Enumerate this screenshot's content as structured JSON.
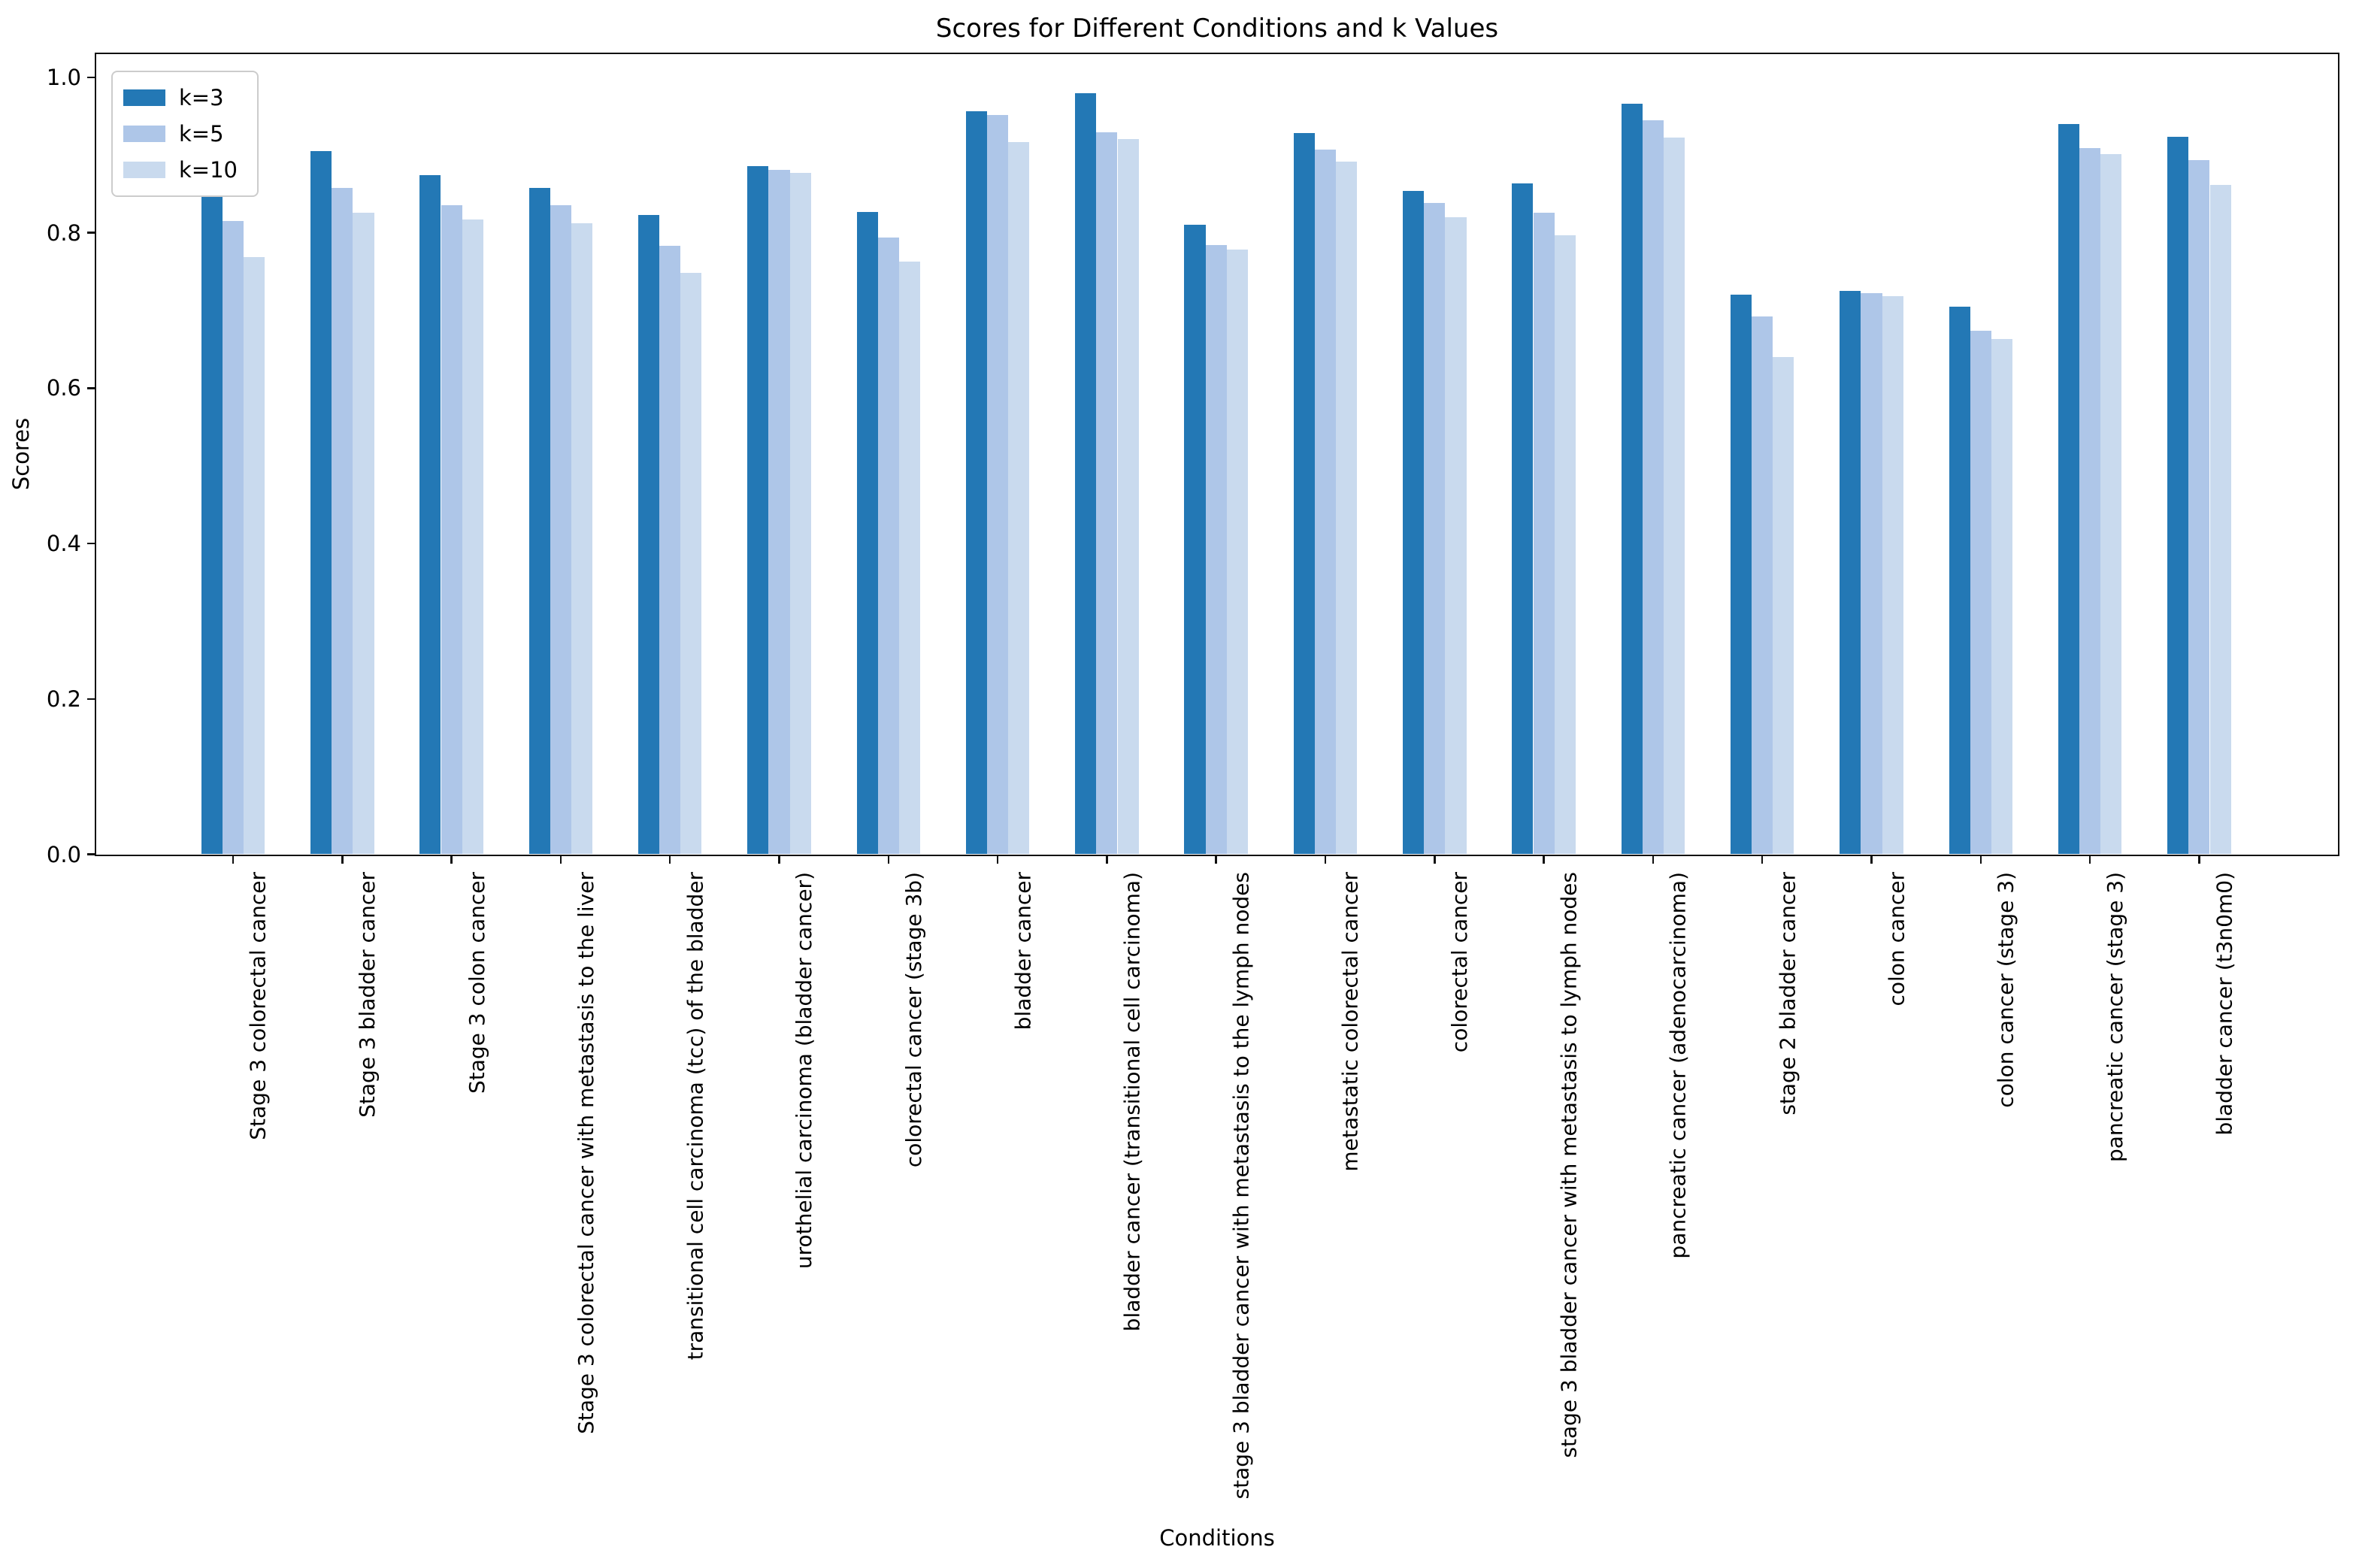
{
  "chart_data": {
    "type": "bar",
    "title": "Scores for Different Conditions and k Values",
    "xlabel": "Conditions",
    "ylabel": "Scores",
    "ylim": [
      0,
      1.03
    ],
    "yticks": [
      0.0,
      0.2,
      0.4,
      0.6,
      0.8,
      1.0
    ],
    "grid": false,
    "legend_position": "upper left",
    "categories": [
      "Stage 3 colorectal cancer",
      "Stage 3 bladder cancer",
      "Stage 3 colon cancer",
      "Stage 3 colorectal cancer with metastasis to the liver",
      "transitional cell carcinoma (tcc) of the bladder",
      "urothelial carcinoma (bladder cancer)",
      "colorectal cancer (stage 3b)",
      "bladder cancer",
      "bladder cancer (transitional cell carcinoma)",
      "stage 3 bladder cancer with metastasis to the lymph nodes",
      "metastatic colorectal cancer",
      "colorectal cancer",
      "stage 3 bladder cancer with metastasis to lymph nodes",
      "pancreatic cancer (adenocarcinoma)",
      "stage 2 bladder cancer",
      "colon cancer",
      "colon cancer (stage 3)",
      "pancreatic cancer (stage 3)",
      "bladder cancer (t3n0m0)"
    ],
    "series": [
      {
        "name": "k=3",
        "color": "#2378b5",
        "values": [
          0.86,
          0.905,
          0.874,
          0.857,
          0.822,
          0.885,
          0.826,
          0.956,
          0.979,
          0.81,
          0.928,
          0.853,
          0.863,
          0.966,
          0.72,
          0.725,
          0.704,
          0.94,
          0.923
        ]
      },
      {
        "name": "k=5",
        "color": "#aec6e8",
        "values": [
          0.815,
          0.857,
          0.835,
          0.835,
          0.783,
          0.881,
          0.793,
          0.951,
          0.929,
          0.784,
          0.907,
          0.838,
          0.825,
          0.944,
          0.692,
          0.722,
          0.673,
          0.909,
          0.893
        ]
      },
      {
        "name": "k=10",
        "color": "#c9daee",
        "values": [
          0.768,
          0.825,
          0.817,
          0.812,
          0.748,
          0.877,
          0.762,
          0.916,
          0.92,
          0.778,
          0.891,
          0.82,
          0.796,
          0.922,
          0.64,
          0.718,
          0.663,
          0.901,
          0.861
        ]
      }
    ]
  }
}
